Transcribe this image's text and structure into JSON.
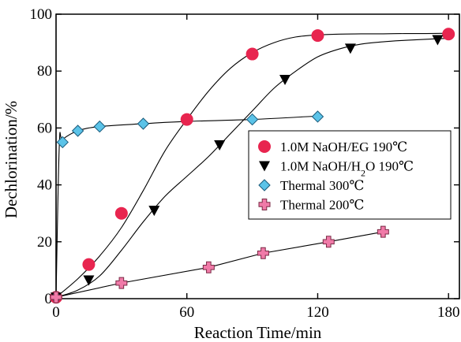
{
  "chart_data": {
    "type": "line",
    "xlabel": "Reaction Time/min",
    "ylabel": "Dechlorination/%",
    "xlim": [
      0,
      185
    ],
    "ylim": [
      0,
      100
    ],
    "xticks": [
      0,
      60,
      120,
      180
    ],
    "yticks": [
      0,
      20,
      40,
      60,
      80,
      100
    ],
    "grid": false,
    "legend_position": "right",
    "series": [
      {
        "name": "1.0M NaOH/EG 190℃",
        "marker": "circle",
        "color": "#e8254f",
        "x": [
          0,
          15,
          30,
          60,
          90,
          120,
          180
        ],
        "y": [
          0.5,
          12,
          30,
          63,
          86,
          92.5,
          93
        ],
        "curve_x": [
          0,
          10,
          20,
          30,
          40,
          50,
          60,
          70,
          80,
          90,
          100,
          110,
          120,
          130,
          140,
          150,
          160,
          170,
          180
        ],
        "curve_y": [
          0.5,
          7,
          15,
          25,
          38,
          52,
          63,
          73,
          81,
          86.5,
          90,
          92,
          92.7,
          93,
          93.1,
          93.1,
          93.2,
          93.2,
          93.3
        ]
      },
      {
        "name": "1.0M NaOH/H2O 190℃",
        "marker": "triangle-down",
        "color": "#000000",
        "x": [
          0,
          15,
          45,
          75,
          105,
          135,
          175
        ],
        "y": [
          0.5,
          6.5,
          31,
          54,
          77,
          88,
          91
        ],
        "curve_x": [
          0,
          10,
          20,
          30,
          40,
          50,
          60,
          70,
          80,
          90,
          100,
          110,
          120,
          130,
          140,
          150,
          160,
          170,
          180
        ],
        "curve_y": [
          0.5,
          3,
          8,
          17,
          27,
          36,
          43,
          50,
          58,
          66,
          74,
          80,
          85,
          87.8,
          89.5,
          90.3,
          90.8,
          91.2,
          91.5
        ]
      },
      {
        "name": "Thermal 300℃",
        "marker": "diamond",
        "color": "#5bc3e8",
        "x": [
          0,
          3,
          10,
          20,
          40,
          90,
          120
        ],
        "y": [
          0.5,
          55,
          59,
          60.5,
          61.5,
          63,
          64
        ],
        "curve_x": [
          0,
          1.5,
          3,
          10,
          20,
          40,
          60,
          90,
          120
        ],
        "curve_y": [
          0.5,
          54,
          56,
          59,
          60.5,
          61.5,
          62.3,
          63,
          64.2
        ]
      },
      {
        "name": "Thermal 200℃",
        "marker": "cross",
        "color": "#f07aa8",
        "x": [
          0,
          30,
          70,
          95,
          125,
          150
        ],
        "y": [
          0.5,
          5.5,
          11,
          16,
          20,
          23.5
        ],
        "curve_x": [
          0,
          30,
          70,
          95,
          125,
          150
        ],
        "curve_y": [
          0.5,
          5.5,
          11,
          16,
          20,
          23.5
        ]
      }
    ],
    "legend_labels": [
      {
        "pre": "1.0M NaOH/EG 190℃",
        "sub": "",
        "post": ""
      },
      {
        "pre": "1.0M NaOH/H",
        "sub": "2",
        "post": "O 190℃"
      },
      {
        "pre": "Thermal 300℃",
        "sub": "",
        "post": ""
      },
      {
        "pre": "Thermal 200℃",
        "sub": "",
        "post": ""
      }
    ]
  }
}
